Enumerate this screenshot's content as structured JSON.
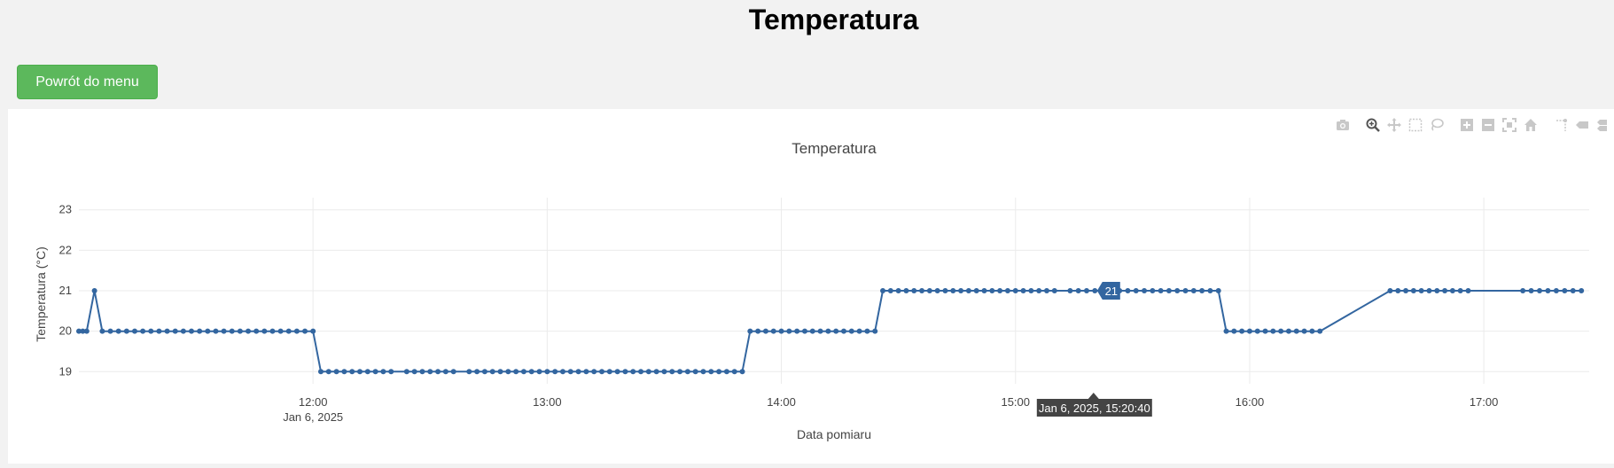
{
  "page": {
    "title": "Temperatura",
    "back_button_label": "Powrót do menu"
  },
  "modebar": {
    "icons": [
      "camera-icon",
      "zoom-icon",
      "pan-icon",
      "box-select-icon",
      "lasso-select-icon",
      "zoom-in-icon",
      "zoom-out-icon",
      "autoscale-icon",
      "home-icon",
      "spike-lines-icon",
      "hover-closest-icon",
      "hover-compare-icon"
    ]
  },
  "chart_data": {
    "type": "line",
    "title": "Temperatura",
    "xlabel": "Data pomiaru",
    "ylabel": "Temperatura (°C)",
    "date": "Jan 6, 2025",
    "xlim": [
      "11:00",
      "17:27"
    ],
    "ylim": [
      18.7,
      23.3
    ],
    "y_ticks": [
      19,
      20,
      21,
      22,
      23
    ],
    "x_ticks": [
      "12:00",
      "13:00",
      "14:00",
      "15:00",
      "16:00",
      "17:00"
    ],
    "x_tick_sublabel": "Jan 6, 2025",
    "grid": true,
    "color": "#3366a0",
    "series": [
      {
        "segments": [
          {
            "start": "11:00",
            "end": "11:02",
            "value": 20,
            "points": 3
          },
          {
            "start": "11:04",
            "end": "11:04",
            "value": 21,
            "points": 1
          },
          {
            "start": "11:06",
            "end": "12:00",
            "value": 20,
            "points": 27
          },
          {
            "start": "12:02",
            "end": "12:20",
            "value": 19,
            "points": 10
          },
          {
            "start": "12:24",
            "end": "12:36",
            "value": 19,
            "points": 7
          },
          {
            "start": "12:40",
            "end": "13:50",
            "value": 19,
            "points": 36
          },
          {
            "start": "13:52",
            "end": "14:24",
            "value": 20,
            "points": 17
          },
          {
            "start": "14:26",
            "end": "15:10",
            "value": 21,
            "points": 23
          },
          {
            "start": "15:14",
            "end": "15:52",
            "value": 21,
            "points": 19
          },
          {
            "start": "15:54",
            "end": "16:18",
            "value": 20,
            "points": 13
          },
          {
            "start": "16:36",
            "end": "16:56",
            "value": 21,
            "points": 11
          },
          {
            "start": "17:10",
            "end": "17:25",
            "value": 21,
            "points": 8
          }
        ]
      }
    ],
    "hover": {
      "x": "15:20",
      "y_label": "21",
      "x_label": "Jan 6, 2025, 15:20:40"
    }
  }
}
